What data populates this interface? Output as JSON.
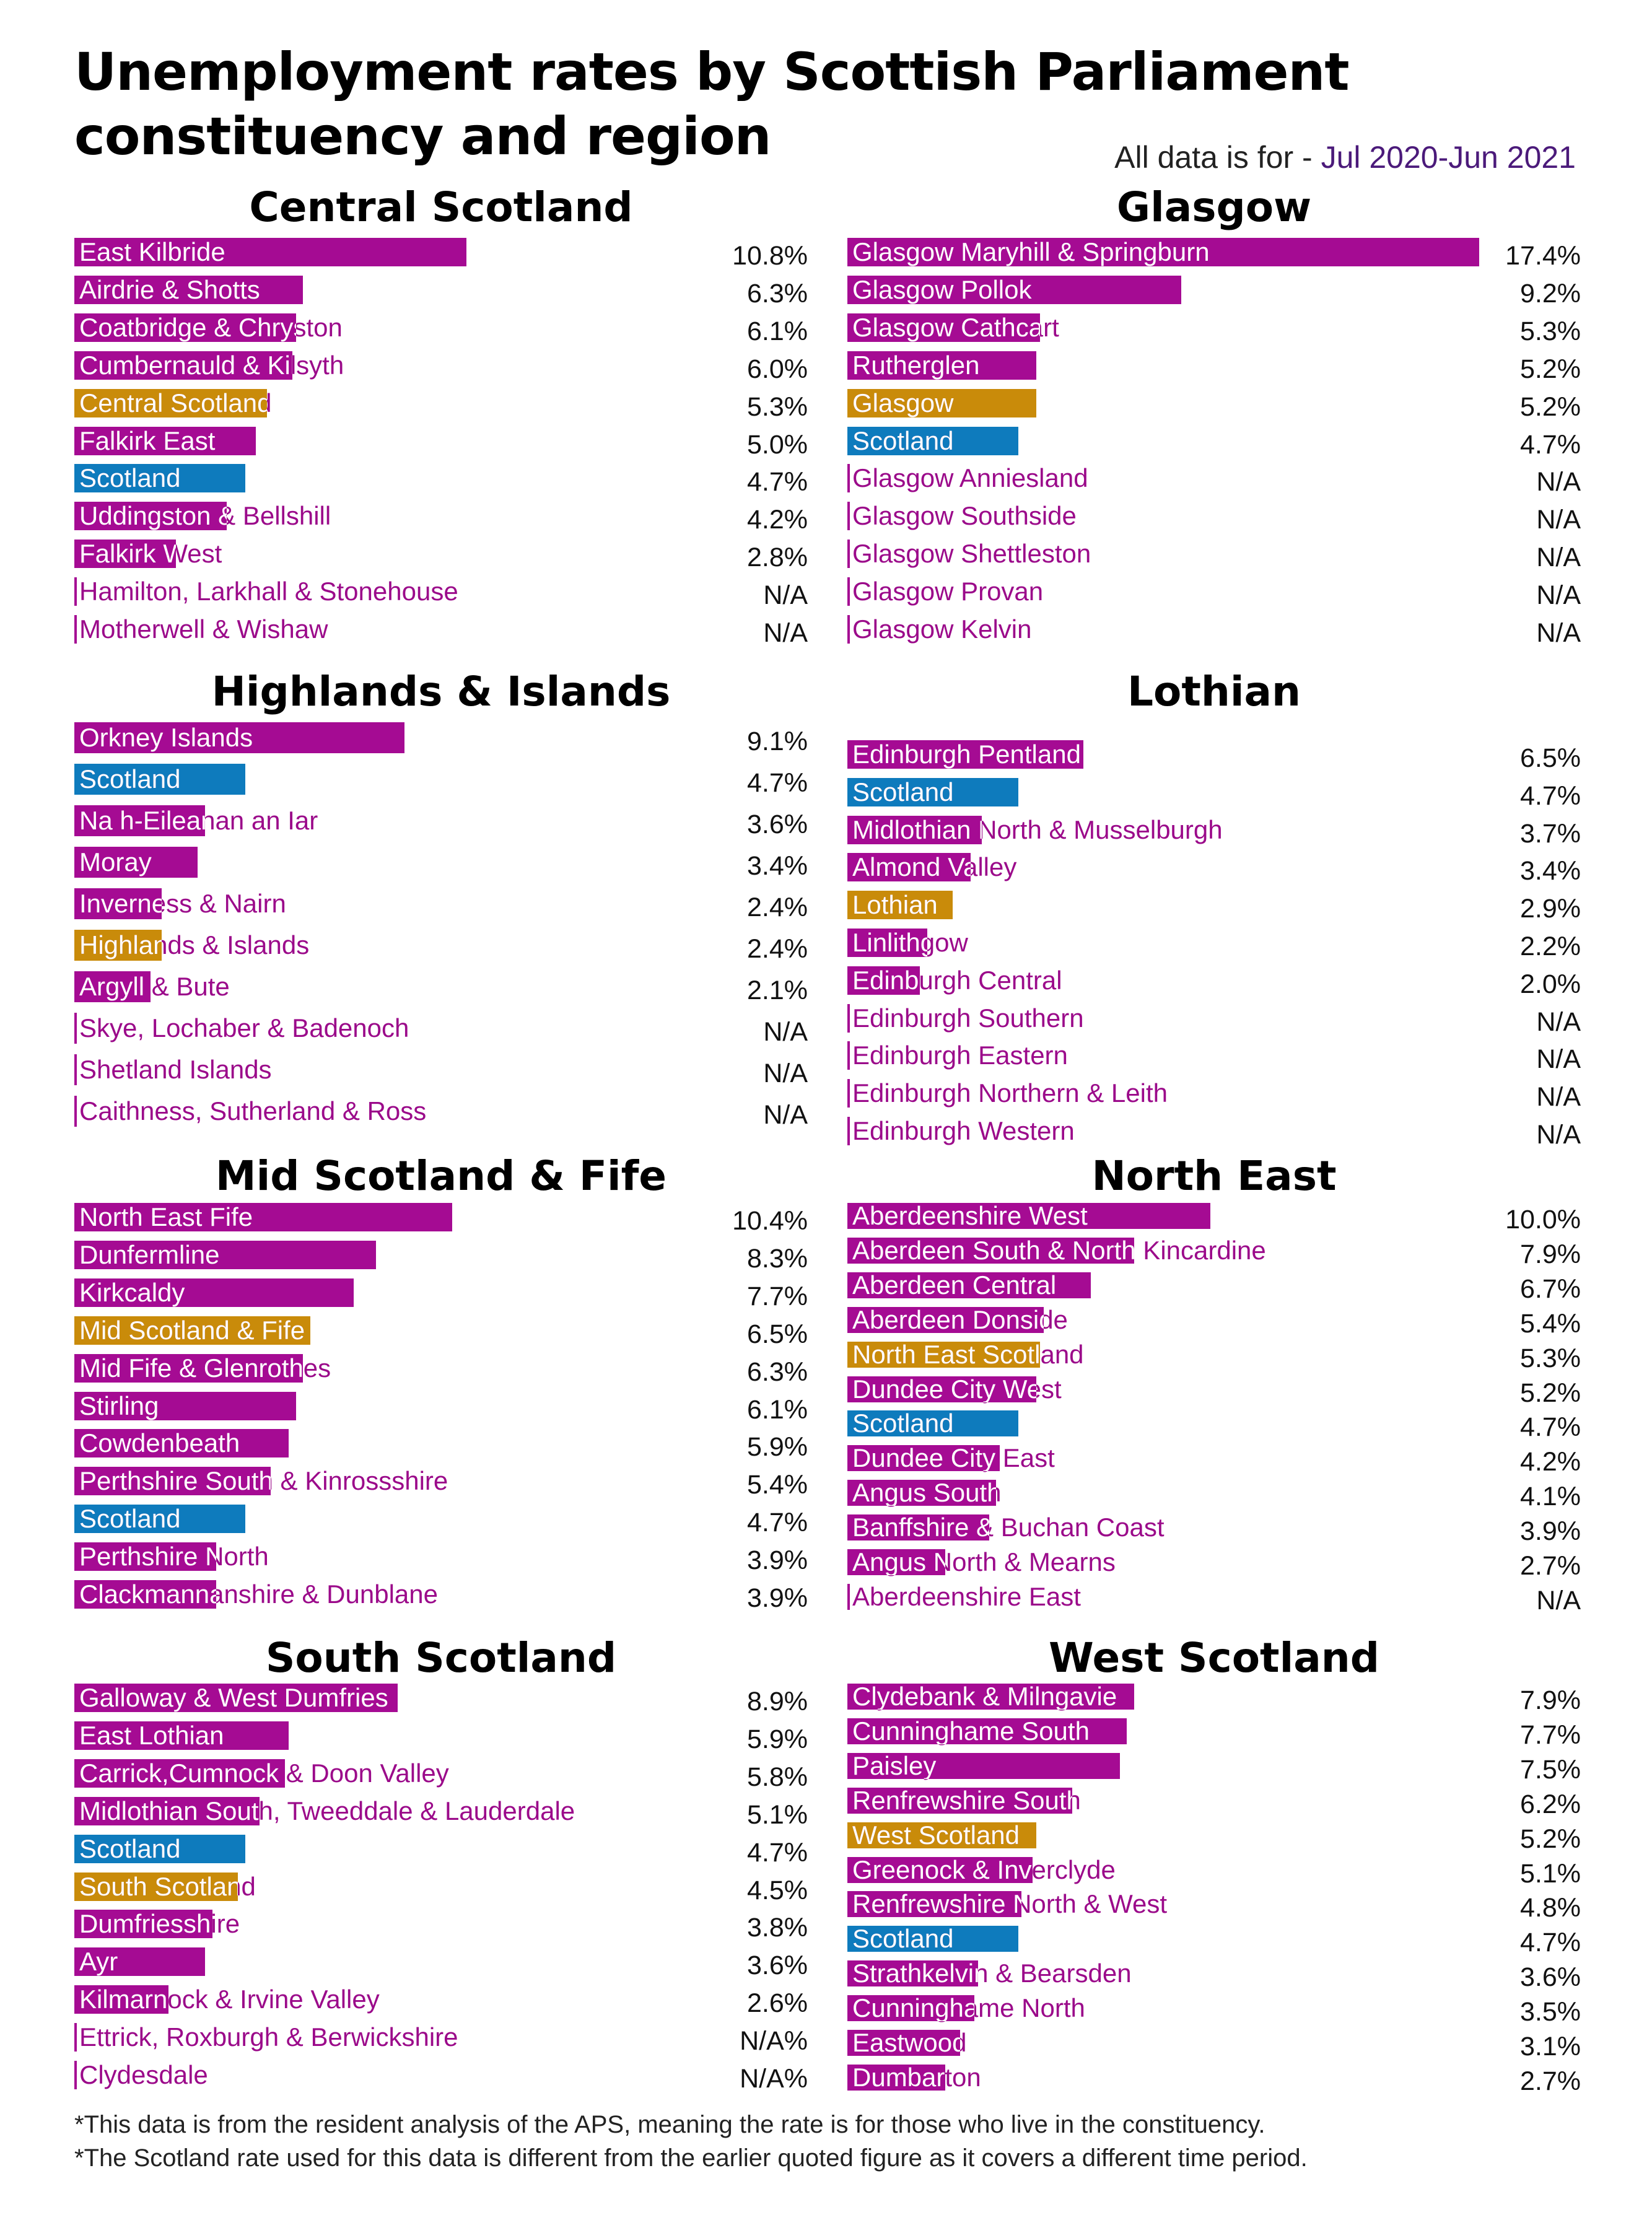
{
  "title_line1": "Unemployment rates by Scottish Parliament",
  "title_line2": "constituency and region",
  "period_label": "All data is for - ",
  "period_value": "Jul 2020-Jun 2021",
  "colors": {
    "constituency": "#a50b93",
    "region": "#c98b0a",
    "scotland": "#0e7bbd",
    "label_text": "#9b0a8a"
  },
  "footnotes": [
    "*This data is from the resident analysis of the APS, meaning the rate is for those who live in the constituency.",
    "*The Scotland rate used for this data is different from the earlier quoted figure as it covers a different time period."
  ],
  "chart_data": [
    {
      "type": "bar",
      "title": "Central Scotland",
      "xlim": [
        0,
        17.4
      ],
      "items": [
        {
          "label": "East Kilbride",
          "value": 10.8,
          "display": "10.8%",
          "kind": "constituency"
        },
        {
          "label": "Airdrie & Shotts",
          "value": 6.3,
          "display": "6.3%",
          "kind": "constituency"
        },
        {
          "label": "Coatbridge & Chryston",
          "value": 6.1,
          "display": "6.1%",
          "kind": "constituency"
        },
        {
          "label": "Cumbernauld & Kilsyth",
          "value": 6.0,
          "display": "6.0%",
          "kind": "constituency"
        },
        {
          "label": "Central Scotland",
          "value": 5.3,
          "display": "5.3%",
          "kind": "region"
        },
        {
          "label": "Falkirk East",
          "value": 5.0,
          "display": "5.0%",
          "kind": "constituency"
        },
        {
          "label": "Scotland",
          "value": 4.7,
          "display": "4.7%",
          "kind": "scotland"
        },
        {
          "label": "Uddingston & Bellshill",
          "value": 4.2,
          "display": "4.2%",
          "kind": "constituency"
        },
        {
          "label": "Falkirk West",
          "value": 2.8,
          "display": "2.8%",
          "kind": "constituency"
        },
        {
          "label": "Hamilton, Larkhall & Stonehouse",
          "value": null,
          "display": "N/A",
          "kind": "constituency"
        },
        {
          "label": "Motherwell & Wishaw",
          "value": null,
          "display": "N/A",
          "kind": "constituency"
        }
      ]
    },
    {
      "type": "bar",
      "title": "Glasgow",
      "xlim": [
        0,
        17.4
      ],
      "items": [
        {
          "label": "Glasgow Maryhill & Springburn",
          "value": 17.4,
          "display": "17.4%",
          "kind": "constituency"
        },
        {
          "label": "Glasgow Pollok",
          "value": 9.2,
          "display": "9.2%",
          "kind": "constituency"
        },
        {
          "label": "Glasgow Cathcart",
          "value": 5.3,
          "display": "5.3%",
          "kind": "constituency"
        },
        {
          "label": "Rutherglen",
          "value": 5.2,
          "display": "5.2%",
          "kind": "constituency"
        },
        {
          "label": "Glasgow",
          "value": 5.2,
          "display": "5.2%",
          "kind": "region"
        },
        {
          "label": "Scotland",
          "value": 4.7,
          "display": "4.7%",
          "kind": "scotland"
        },
        {
          "label": "Glasgow Anniesland",
          "value": null,
          "display": "N/A",
          "kind": "constituency"
        },
        {
          "label": "Glasgow Southside",
          "value": null,
          "display": "N/A",
          "kind": "constituency"
        },
        {
          "label": "Glasgow Shettleston",
          "value": null,
          "display": "N/A",
          "kind": "constituency"
        },
        {
          "label": "Glasgow Provan",
          "value": null,
          "display": "N/A",
          "kind": "constituency"
        },
        {
          "label": "Glasgow Kelvin",
          "value": null,
          "display": "N/A",
          "kind": "constituency"
        }
      ]
    },
    {
      "type": "bar",
      "title": "Highlands & Islands",
      "xlim": [
        0,
        17.4
      ],
      "items": [
        {
          "label": "Orkney Islands",
          "value": 9.1,
          "display": "9.1%",
          "kind": "constituency"
        },
        {
          "label": "Scotland",
          "value": 4.7,
          "display": "4.7%",
          "kind": "scotland"
        },
        {
          "label": "Na h-Eileanan an Iar",
          "value": 3.6,
          "display": "3.6%",
          "kind": "constituency"
        },
        {
          "label": "Moray",
          "value": 3.4,
          "display": "3.4%",
          "kind": "constituency"
        },
        {
          "label": "Inverness & Nairn",
          "value": 2.4,
          "display": "2.4%",
          "kind": "constituency"
        },
        {
          "label": "Highlands & Islands",
          "value": 2.4,
          "display": "2.4%",
          "kind": "region"
        },
        {
          "label": "Argyll & Bute",
          "value": 2.1,
          "display": "2.1%",
          "kind": "constituency"
        },
        {
          "label": "Skye, Lochaber & Badenoch",
          "value": null,
          "display": "N/A",
          "kind": "constituency"
        },
        {
          "label": "Shetland Islands",
          "value": null,
          "display": "N/A",
          "kind": "constituency"
        },
        {
          "label": "Caithness, Sutherland & Ross",
          "value": null,
          "display": "N/A",
          "kind": "constituency"
        }
      ]
    },
    {
      "type": "bar",
      "title": "Lothian",
      "xlim": [
        0,
        17.4
      ],
      "items": [
        {
          "label": "Edinburgh Pentland",
          "value": 6.5,
          "display": "6.5%",
          "kind": "constituency"
        },
        {
          "label": "Scotland",
          "value": 4.7,
          "display": "4.7%",
          "kind": "scotland"
        },
        {
          "label": "Midlothian North & Musselburgh",
          "value": 3.7,
          "display": "3.7%",
          "kind": "constituency"
        },
        {
          "label": "Almond Valley",
          "value": 3.4,
          "display": "3.4%",
          "kind": "constituency"
        },
        {
          "label": "Lothian",
          "value": 2.9,
          "display": "2.9%",
          "kind": "region"
        },
        {
          "label": "Linlithgow",
          "value": 2.2,
          "display": "2.2%",
          "kind": "constituency"
        },
        {
          "label": "Edinburgh Central",
          "value": 2.0,
          "display": "2.0%",
          "kind": "constituency"
        },
        {
          "label": "Edinburgh Southern",
          "value": null,
          "display": "N/A",
          "kind": "constituency"
        },
        {
          "label": "Edinburgh Eastern",
          "value": null,
          "display": "N/A",
          "kind": "constituency"
        },
        {
          "label": "Edinburgh Northern & Leith",
          "value": null,
          "display": "N/A",
          "kind": "constituency"
        },
        {
          "label": "Edinburgh Western",
          "value": null,
          "display": "N/A",
          "kind": "constituency"
        }
      ]
    },
    {
      "type": "bar",
      "title": "Mid Scotland & Fife",
      "xlim": [
        0,
        17.4
      ],
      "items": [
        {
          "label": "North East Fife",
          "value": 10.4,
          "display": "10.4%",
          "kind": "constituency"
        },
        {
          "label": "Dunfermline",
          "value": 8.3,
          "display": "8.3%",
          "kind": "constituency"
        },
        {
          "label": "Kirkcaldy",
          "value": 7.7,
          "display": "7.7%",
          "kind": "constituency"
        },
        {
          "label": "Mid Scotland & Fife",
          "value": 6.5,
          "display": "6.5%",
          "kind": "region"
        },
        {
          "label": "Mid Fife & Glenrothes",
          "value": 6.3,
          "display": "6.3%",
          "kind": "constituency"
        },
        {
          "label": "Stirling",
          "value": 6.1,
          "display": "6.1%",
          "kind": "constituency"
        },
        {
          "label": "Cowdenbeath",
          "value": 5.9,
          "display": "5.9%",
          "kind": "constituency"
        },
        {
          "label": "Perthshire South & Kinrossshire",
          "value": 5.4,
          "display": "5.4%",
          "kind": "constituency"
        },
        {
          "label": "Scotland",
          "value": 4.7,
          "display": "4.7%",
          "kind": "scotland"
        },
        {
          "label": "Perthshire North",
          "value": 3.9,
          "display": "3.9%",
          "kind": "constituency"
        },
        {
          "label": "Clackmannanshire & Dunblane",
          "value": 3.9,
          "display": "3.9%",
          "kind": "constituency"
        }
      ]
    },
    {
      "type": "bar",
      "title": "North East",
      "xlim": [
        0,
        17.4
      ],
      "items": [
        {
          "label": "Aberdeenshire West",
          "value": 10.0,
          "display": "10.0%",
          "kind": "constituency"
        },
        {
          "label": "Aberdeen South & North Kincardine",
          "value": 7.9,
          "display": "7.9%",
          "kind": "constituency"
        },
        {
          "label": "Aberdeen Central",
          "value": 6.7,
          "display": "6.7%",
          "kind": "constituency"
        },
        {
          "label": "Aberdeen Donside",
          "value": 5.4,
          "display": "5.4%",
          "kind": "constituency"
        },
        {
          "label": "North East Scotland",
          "value": 5.3,
          "display": "5.3%",
          "kind": "region"
        },
        {
          "label": "Dundee City West",
          "value": 5.2,
          "display": "5.2%",
          "kind": "constituency"
        },
        {
          "label": "Scotland",
          "value": 4.7,
          "display": "4.7%",
          "kind": "scotland"
        },
        {
          "label": "Dundee City East",
          "value": 4.2,
          "display": "4.2%",
          "kind": "constituency"
        },
        {
          "label": "Angus South",
          "value": 4.1,
          "display": "4.1%",
          "kind": "constituency"
        },
        {
          "label": "Banffshire & Buchan Coast",
          "value": 3.9,
          "display": "3.9%",
          "kind": "constituency"
        },
        {
          "label": "Angus North & Mearns",
          "value": 2.7,
          "display": "2.7%",
          "kind": "constituency"
        },
        {
          "label": "Aberdeenshire East",
          "value": null,
          "display": "N/A",
          "kind": "constituency"
        }
      ]
    },
    {
      "type": "bar",
      "title": "South Scotland",
      "xlim": [
        0,
        17.4
      ],
      "items": [
        {
          "label": "Galloway & West Dumfries",
          "value": 8.9,
          "display": "8.9%",
          "kind": "constituency"
        },
        {
          "label": "East Lothian",
          "value": 5.9,
          "display": "5.9%",
          "kind": "constituency"
        },
        {
          "label": "Carrick,Cumnock & Doon Valley",
          "value": 5.8,
          "display": "5.8%",
          "kind": "constituency"
        },
        {
          "label": "Midlothian South, Tweeddale & Lauderdale",
          "value": 5.1,
          "display": "5.1%",
          "kind": "constituency"
        },
        {
          "label": "Scotland",
          "value": 4.7,
          "display": "4.7%",
          "kind": "scotland"
        },
        {
          "label": "South Scotland",
          "value": 4.5,
          "display": "4.5%",
          "kind": "region"
        },
        {
          "label": "Dumfriesshire",
          "value": 3.8,
          "display": "3.8%",
          "kind": "constituency"
        },
        {
          "label": "Ayr",
          "value": 3.6,
          "display": "3.6%",
          "kind": "constituency"
        },
        {
          "label": "Kilmarnock & Irvine Valley",
          "value": 2.6,
          "display": "2.6%",
          "kind": "constituency"
        },
        {
          "label": "Ettrick, Roxburgh & Berwickshire",
          "value": null,
          "display": "N/A%",
          "kind": "constituency"
        },
        {
          "label": "Clydesdale",
          "value": null,
          "display": "N/A%",
          "kind": "constituency"
        }
      ]
    },
    {
      "type": "bar",
      "title": "West Scotland",
      "xlim": [
        0,
        17.4
      ],
      "items": [
        {
          "label": "Clydebank & Milngavie",
          "value": 7.9,
          "display": "7.9%",
          "kind": "constituency"
        },
        {
          "label": "Cunninghame South",
          "value": 7.7,
          "display": "7.7%",
          "kind": "constituency"
        },
        {
          "label": "Paisley",
          "value": 7.5,
          "display": "7.5%",
          "kind": "constituency"
        },
        {
          "label": "Renfrewshire South",
          "value": 6.2,
          "display": "6.2%",
          "kind": "constituency"
        },
        {
          "label": "West Scotland",
          "value": 5.2,
          "display": "5.2%",
          "kind": "region"
        },
        {
          "label": "Greenock & Inverclyde",
          "value": 5.1,
          "display": "5.1%",
          "kind": "constituency"
        },
        {
          "label": "Renfrewshire North & West",
          "value": 4.8,
          "display": "4.8%",
          "kind": "constituency"
        },
        {
          "label": "Scotland",
          "value": 4.7,
          "display": "4.7%",
          "kind": "scotland"
        },
        {
          "label": "Strathkelvin & Bearsden",
          "value": 3.6,
          "display": "3.6%",
          "kind": "constituency"
        },
        {
          "label": "Cunninghame North",
          "value": 3.5,
          "display": "3.5%",
          "kind": "constituency"
        },
        {
          "label": "Eastwood",
          "value": 3.1,
          "display": "3.1%",
          "kind": "constituency"
        },
        {
          "label": "Dumbarton",
          "value": 2.7,
          "display": "2.7%",
          "kind": "constituency"
        }
      ]
    }
  ]
}
